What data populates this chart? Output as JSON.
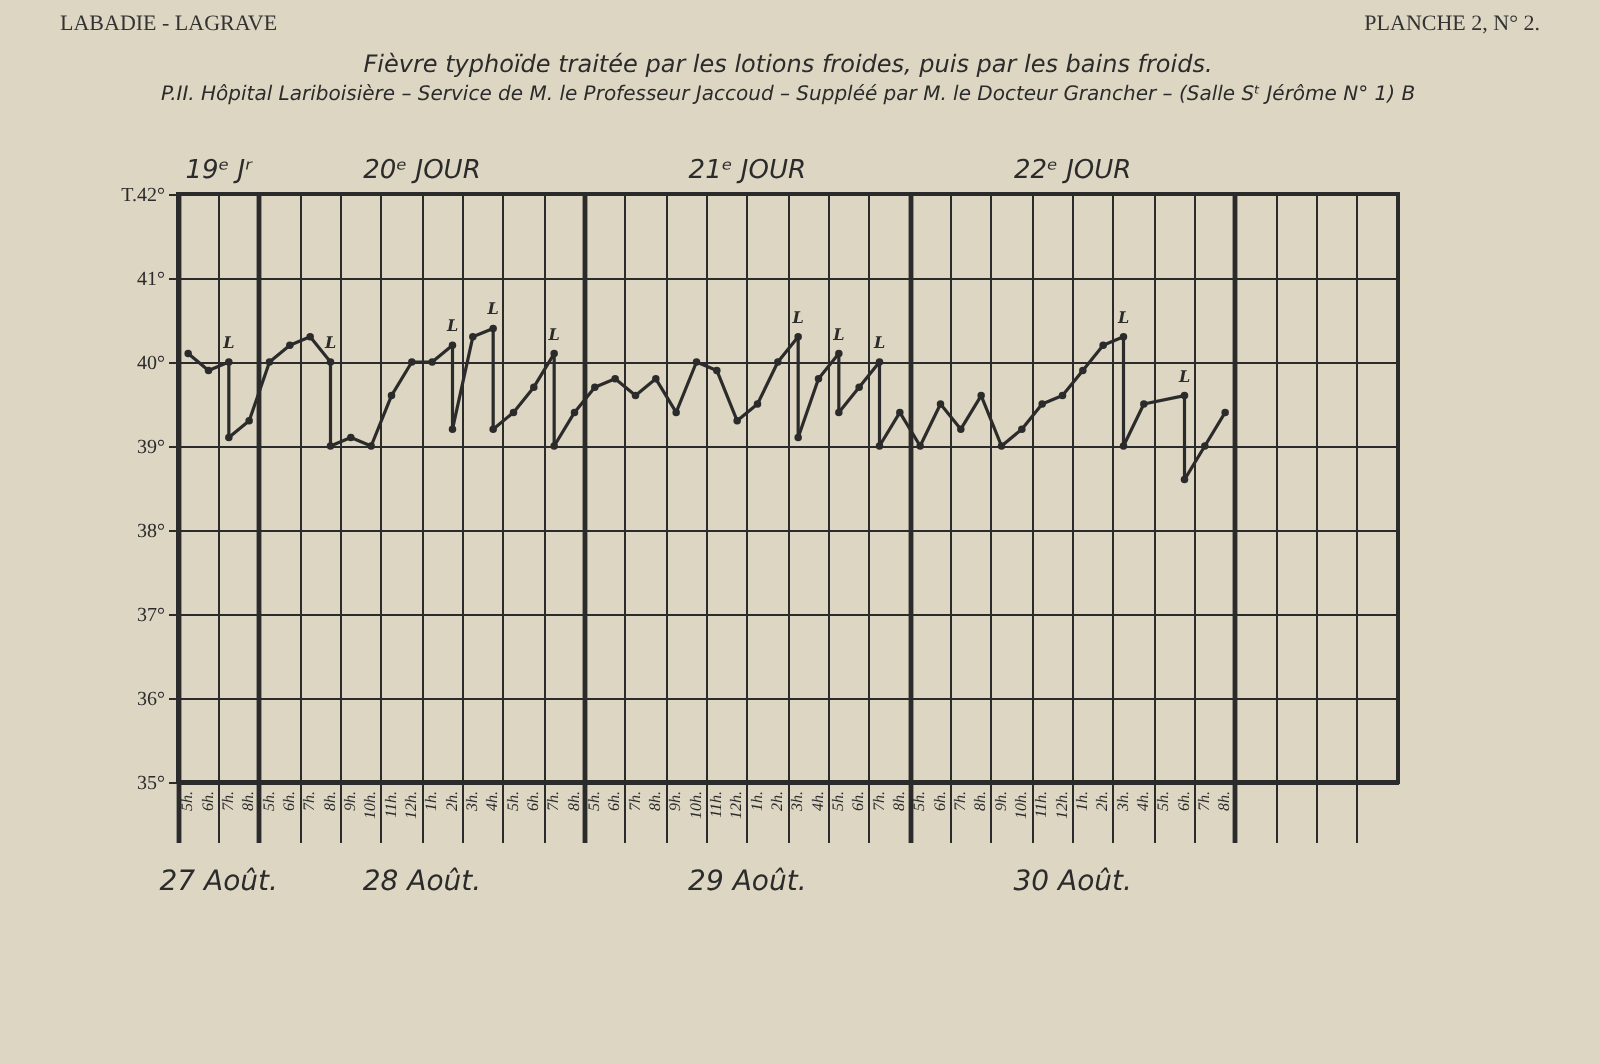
{
  "chart_data": {
    "type": "line",
    "title": "Fièvre typhoïde traitée par les lotions froides, puis par les bains froids.",
    "subtitle": "P.II. Hôpital Lariboisière – Service de M. le Professeur Jaccoud – Suppléé par M. le Docteur Grancher – (Salle Sᵗ Jérôme N° 1) B",
    "annotations": [
      "LABADIE - LAGRAVE",
      "PLANCHE 2, N° 2.",
      "19ᵉ Jʳ",
      "20ᵉ JOUR",
      "21ᵉ JOUR",
      "22ᵉ JOUR",
      "27 Août.",
      "28 Août.",
      "29 Août.",
      "30 Août."
    ],
    "categories": [
      "5h.",
      "6h.",
      "7h.",
      "8h.",
      "5h.",
      "6h.",
      "7h.",
      "8h.",
      "9h.",
      "10h.",
      "11h.",
      "12h.",
      "1h.",
      "2h.",
      "3h.",
      "4h.",
      "5h.",
      "6h.",
      "7h.",
      "8h.",
      "5h.",
      "6h.",
      "7h.",
      "8h.",
      "9h.",
      "10h.",
      "11h.",
      "12h.",
      "1h.",
      "2h.",
      "3h.",
      "4h.",
      "5h.",
      "6h.",
      "7h.",
      "8h.",
      "5h.",
      "6h.",
      "7h.",
      "8h.",
      "9h.",
      "10h.",
      "11h.",
      "12h.",
      "1h.",
      "2h.",
      "3h.",
      "4h.",
      "5h.",
      "6h.",
      "7h.",
      "8h.",
      null,
      null,
      null,
      null,
      null,
      null,
      null,
      null
    ],
    "series": [
      {
        "color": "#2b2b2b",
        "values": [
          40.1,
          39.9,
          40.0,
          null,
          null,
          null,
          null,
          null,
          null,
          null,
          null,
          null,
          null,
          null,
          null,
          null,
          null,
          null,
          null,
          null,
          null,
          null,
          null,
          null,
          null,
          null,
          null,
          null,
          null,
          null,
          null,
          null,
          null,
          null,
          null,
          null,
          null,
          null,
          null,
          null,
          null,
          null,
          null,
          null,
          null,
          null,
          null,
          null,
          null,
          null,
          null,
          null,
          null,
          null,
          null,
          null,
          null,
          null,
          null,
          null
        ],
        "errors": [
          null,
          null,
          [
            39.1,
            40.0
          ],
          null,
          null,
          null,
          null,
          null,
          null,
          null,
          null,
          null,
          null,
          null,
          null,
          null,
          null,
          null,
          null,
          null,
          null,
          null,
          null,
          null,
          null,
          null,
          null,
          null,
          null,
          null,
          null,
          null,
          null,
          null,
          null,
          null,
          null,
          null,
          null,
          null,
          null,
          null,
          null,
          null,
          null,
          null,
          null,
          null,
          null,
          null,
          null,
          null,
          null,
          null,
          null,
          null,
          null,
          null,
          null,
          null
        ],
        "value_labels": [
          null,
          null,
          "L",
          null,
          null,
          null,
          null,
          null,
          null,
          null,
          null,
          null,
          null,
          null,
          null,
          null,
          null,
          null,
          null,
          null,
          null,
          null,
          null,
          null,
          null,
          null,
          null,
          null,
          null,
          null,
          null,
          null,
          null,
          null,
          null,
          null,
          null,
          null,
          null,
          null,
          null,
          null,
          null,
          null,
          null,
          null,
          null,
          null,
          null,
          null,
          null,
          null,
          null,
          null,
          null,
          null,
          null,
          null,
          null,
          null
        ]
      },
      {
        "color": "#2b2b2b",
        "values": [
          null,
          null,
          39.1,
          39.3,
          40.0,
          40.2,
          40.3,
          40.0,
          null,
          null,
          null,
          null,
          null,
          null,
          null,
          null,
          null,
          null,
          null,
          null,
          null,
          null,
          null,
          null,
          null,
          null,
          null,
          null,
          null,
          null,
          null,
          null,
          null,
          null,
          null,
          null,
          null,
          null,
          null,
          null,
          null,
          null,
          null,
          null,
          null,
          null,
          null,
          null,
          null,
          null,
          null,
          null,
          null,
          null,
          null,
          null,
          null,
          null,
          null,
          null
        ],
        "errors": [
          null,
          null,
          null,
          null,
          null,
          null,
          null,
          [
            39.0,
            40.0
          ],
          null,
          null,
          null,
          null,
          null,
          null,
          null,
          null,
          null,
          null,
          null,
          null,
          null,
          null,
          null,
          null,
          null,
          null,
          null,
          null,
          null,
          null,
          null,
          null,
          null,
          null,
          null,
          null,
          null,
          null,
          null,
          null,
          null,
          null,
          null,
          null,
          null,
          null,
          null,
          null,
          null,
          null,
          null,
          null,
          null,
          null,
          null,
          null,
          null,
          null,
          null,
          null
        ],
        "value_labels": [
          null,
          null,
          null,
          null,
          null,
          null,
          null,
          "L",
          null,
          null,
          null,
          null,
          null,
          null,
          null,
          null,
          null,
          null,
          null,
          null,
          null,
          null,
          null,
          null,
          null,
          null,
          null,
          null,
          null,
          null,
          null,
          null,
          null,
          null,
          null,
          null,
          null,
          null,
          null,
          null,
          null,
          null,
          null,
          null,
          null,
          null,
          null,
          null,
          null,
          null,
          null,
          null,
          null,
          null,
          null,
          null,
          null,
          null,
          null,
          null
        ]
      },
      {
        "color": "#2b2b2b",
        "values": [
          null,
          null,
          null,
          null,
          null,
          null,
          null,
          39.0,
          39.1,
          39.0,
          39.6,
          40.0,
          40.0,
          40.2,
          null,
          null,
          null,
          null,
          null,
          null,
          null,
          null,
          null,
          null,
          null,
          null,
          null,
          null,
          null,
          null,
          null,
          null,
          null,
          null,
          null,
          null,
          null,
          null,
          null,
          null,
          null,
          null,
          null,
          null,
          null,
          null,
          null,
          null,
          null,
          null,
          null,
          null,
          null,
          null,
          null,
          null,
          null,
          null,
          null,
          null
        ],
        "errors": [
          null,
          null,
          null,
          null,
          null,
          null,
          null,
          null,
          null,
          null,
          null,
          null,
          null,
          [
            39.2,
            40.2
          ],
          null,
          null,
          null,
          null,
          null,
          null,
          null,
          null,
          null,
          null,
          null,
          null,
          null,
          null,
          null,
          null,
          null,
          null,
          null,
          null,
          null,
          null,
          null,
          null,
          null,
          null,
          null,
          null,
          null,
          null,
          null,
          null,
          null,
          null,
          null,
          null,
          null,
          null,
          null,
          null,
          null,
          null,
          null,
          null,
          null,
          null
        ],
        "value_labels": [
          null,
          null,
          null,
          null,
          null,
          null,
          null,
          null,
          null,
          null,
          null,
          null,
          null,
          "L",
          null,
          null,
          null,
          null,
          null,
          null,
          null,
          null,
          null,
          null,
          null,
          null,
          null,
          null,
          null,
          null,
          null,
          null,
          null,
          null,
          null,
          null,
          null,
          null,
          null,
          null,
          null,
          null,
          null,
          null,
          null,
          null,
          null,
          null,
          null,
          null,
          null,
          null,
          null,
          null,
          null,
          null,
          null,
          null,
          null,
          null
        ]
      },
      {
        "color": "#2b2b2b",
        "values": [
          null,
          null,
          null,
          null,
          null,
          null,
          null,
          null,
          null,
          null,
          null,
          null,
          null,
          39.2,
          40.3,
          40.4,
          null,
          null,
          null,
          null,
          null,
          null,
          null,
          null,
          null,
          null,
          null,
          null,
          null,
          null,
          null,
          null,
          null,
          null,
          null,
          null,
          null,
          null,
          null,
          null,
          null,
          null,
          null,
          null,
          null,
          null,
          null,
          null,
          null,
          null,
          null,
          null,
          null,
          null,
          null,
          null,
          null,
          null,
          null,
          null
        ],
        "errors": [
          null,
          null,
          null,
          null,
          null,
          null,
          null,
          null,
          null,
          null,
          null,
          null,
          null,
          null,
          null,
          [
            39.2,
            40.4
          ],
          null,
          null,
          null,
          null,
          null,
          null,
          null,
          null,
          null,
          null,
          null,
          null,
          null,
          null,
          null,
          null,
          null,
          null,
          null,
          null,
          null,
          null,
          null,
          null,
          null,
          null,
          null,
          null,
          null,
          null,
          null,
          null,
          null,
          null,
          null,
          null,
          null,
          null,
          null,
          null,
          null,
          null,
          null,
          null
        ],
        "value_labels": [
          null,
          null,
          null,
          null,
          null,
          null,
          null,
          null,
          null,
          null,
          null,
          null,
          null,
          null,
          null,
          "L",
          null,
          null,
          null,
          null,
          null,
          null,
          null,
          null,
          null,
          null,
          null,
          null,
          null,
          null,
          null,
          null,
          null,
          null,
          null,
          null,
          null,
          null,
          null,
          null,
          null,
          null,
          null,
          null,
          null,
          null,
          null,
          null,
          null,
          null,
          null,
          null,
          null,
          null,
          null,
          null,
          null,
          null,
          null,
          null
        ]
      },
      {
        "color": "#2b2b2b",
        "values": [
          null,
          null,
          null,
          null,
          null,
          null,
          null,
          null,
          null,
          null,
          null,
          null,
          null,
          null,
          null,
          39.2,
          39.4,
          39.7,
          40.1,
          null,
          null,
          null,
          null,
          null,
          null,
          null,
          null,
          null,
          null,
          null,
          null,
          null,
          null,
          null,
          null,
          null,
          null,
          null,
          null,
          null,
          null,
          null,
          null,
          null,
          null,
          null,
          null,
          null,
          null,
          null,
          null,
          null,
          null,
          null,
          null,
          null,
          null,
          null,
          null,
          null
        ],
        "errors": [
          null,
          null,
          null,
          null,
          null,
          null,
          null,
          null,
          null,
          null,
          null,
          null,
          null,
          null,
          null,
          null,
          null,
          null,
          [
            39.0,
            40.1
          ],
          null,
          null,
          null,
          null,
          null,
          null,
          null,
          null,
          null,
          null,
          null,
          null,
          null,
          null,
          null,
          null,
          null,
          null,
          null,
          null,
          null,
          null,
          null,
          null,
          null,
          null,
          null,
          null,
          null,
          null,
          null,
          null,
          null,
          null,
          null,
          null,
          null,
          null,
          null,
          null,
          null
        ],
        "value_labels": [
          null,
          null,
          null,
          null,
          null,
          null,
          null,
          null,
          null,
          null,
          null,
          null,
          null,
          null,
          null,
          null,
          null,
          null,
          "L",
          null,
          null,
          null,
          null,
          null,
          null,
          null,
          null,
          null,
          null,
          null,
          null,
          null,
          null,
          null,
          null,
          null,
          null,
          null,
          null,
          null,
          null,
          null,
          null,
          null,
          null,
          null,
          null,
          null,
          null,
          null,
          null,
          null,
          null,
          null,
          null,
          null,
          null,
          null,
          null,
          null
        ]
      },
      {
        "color": "#2b2b2b",
        "values": [
          null,
          null,
          null,
          null,
          null,
          null,
          null,
          null,
          null,
          null,
          null,
          null,
          null,
          null,
          null,
          null,
          null,
          null,
          39.0,
          39.4,
          39.7,
          39.8,
          39.6,
          39.8,
          39.4,
          40.0,
          39.9,
          39.3,
          39.5,
          40.0,
          40.3,
          null,
          null,
          null,
          null,
          null,
          null,
          null,
          null,
          null,
          null,
          null,
          null,
          null,
          null,
          null,
          null,
          null,
          null,
          null,
          null,
          null,
          null,
          null,
          null,
          null,
          null,
          null,
          null,
          null
        ],
        "errors": [
          null,
          null,
          null,
          null,
          null,
          null,
          null,
          null,
          null,
          null,
          null,
          null,
          null,
          null,
          null,
          null,
          null,
          null,
          null,
          null,
          null,
          null,
          null,
          null,
          null,
          null,
          null,
          null,
          null,
          null,
          [
            39.1,
            40.3
          ],
          null,
          null,
          null,
          null,
          null,
          null,
          null,
          null,
          null,
          null,
          null,
          null,
          null,
          null,
          null,
          null,
          null,
          null,
          null,
          null,
          null,
          null,
          null,
          null,
          null,
          null,
          null,
          null,
          null
        ],
        "value_labels": [
          null,
          null,
          null,
          null,
          null,
          null,
          null,
          null,
          null,
          null,
          null,
          null,
          null,
          null,
          null,
          null,
          null,
          null,
          null,
          null,
          null,
          null,
          null,
          null,
          null,
          null,
          null,
          null,
          null,
          null,
          "L",
          null,
          null,
          null,
          null,
          null,
          null,
          null,
          null,
          null,
          null,
          null,
          null,
          null,
          null,
          null,
          null,
          null,
          null,
          null,
          null,
          null,
          null,
          null,
          null,
          null,
          null,
          null,
          null,
          null
        ]
      },
      {
        "color": "#2b2b2b",
        "values": [
          null,
          null,
          null,
          null,
          null,
          null,
          null,
          null,
          null,
          null,
          null,
          null,
          null,
          null,
          null,
          null,
          null,
          null,
          null,
          null,
          null,
          null,
          null,
          null,
          null,
          null,
          null,
          null,
          null,
          null,
          39.1,
          39.8,
          40.1,
          null,
          null,
          null,
          null,
          null,
          null,
          null,
          null,
          null,
          null,
          null,
          null,
          null,
          null,
          null,
          null,
          null,
          null,
          null,
          null,
          null,
          null,
          null,
          null,
          null,
          null,
          null
        ],
        "errors": [
          null,
          null,
          null,
          null,
          null,
          null,
          null,
          null,
          null,
          null,
          null,
          null,
          null,
          null,
          null,
          null,
          null,
          null,
          null,
          null,
          null,
          null,
          null,
          null,
          null,
          null,
          null,
          null,
          null,
          null,
          null,
          null,
          [
            39.4,
            40.1
          ],
          null,
          null,
          null,
          null,
          null,
          null,
          null,
          null,
          null,
          null,
          null,
          null,
          null,
          null,
          null,
          null,
          null,
          null,
          null,
          null,
          null,
          null,
          null,
          null,
          null,
          null,
          null
        ],
        "value_labels": [
          null,
          null,
          null,
          null,
          null,
          null,
          null,
          null,
          null,
          null,
          null,
          null,
          null,
          null,
          null,
          null,
          null,
          null,
          null,
          null,
          null,
          null,
          null,
          null,
          null,
          null,
          null,
          null,
          null,
          null,
          null,
          null,
          "L",
          null,
          null,
          null,
          null,
          null,
          null,
          null,
          null,
          null,
          null,
          null,
          null,
          null,
          null,
          null,
          null,
          null,
          null,
          null,
          null,
          null,
          null,
          null,
          null,
          null,
          null,
          null
        ]
      },
      {
        "color": "#2b2b2b",
        "values": [
          null,
          null,
          null,
          null,
          null,
          null,
          null,
          null,
          null,
          null,
          null,
          null,
          null,
          null,
          null,
          null,
          null,
          null,
          null,
          null,
          null,
          null,
          null,
          null,
          null,
          null,
          null,
          null,
          null,
          null,
          null,
          null,
          39.4,
          39.7,
          40.0,
          null,
          null,
          null,
          null,
          null,
          null,
          null,
          null,
          null,
          null,
          null,
          null,
          null,
          null,
          null,
          null,
          null,
          null,
          null,
          null,
          null,
          null,
          null,
          null,
          null
        ],
        "errors": [
          null,
          null,
          null,
          null,
          null,
          null,
          null,
          null,
          null,
          null,
          null,
          null,
          null,
          null,
          null,
          null,
          null,
          null,
          null,
          null,
          null,
          null,
          null,
          null,
          null,
          null,
          null,
          null,
          null,
          null,
          null,
          null,
          null,
          null,
          [
            39.0,
            40.0
          ],
          null,
          null,
          null,
          null,
          null,
          null,
          null,
          null,
          null,
          null,
          null,
          null,
          null,
          null,
          null,
          null,
          null,
          null,
          null,
          null,
          null,
          null,
          null,
          null,
          null
        ],
        "value_labels": [
          null,
          null,
          null,
          null,
          null,
          null,
          null,
          null,
          null,
          null,
          null,
          null,
          null,
          null,
          null,
          null,
          null,
          null,
          null,
          null,
          null,
          null,
          null,
          null,
          null,
          null,
          null,
          null,
          null,
          null,
          null,
          null,
          null,
          null,
          "L",
          null,
          null,
          null,
          null,
          null,
          null,
          null,
          null,
          null,
          null,
          null,
          null,
          null,
          null,
          null,
          null,
          null,
          null,
          null,
          null,
          null,
          null,
          null,
          null,
          null
        ]
      },
      {
        "color": "#2b2b2b",
        "values": [
          null,
          null,
          null,
          null,
          null,
          null,
          null,
          null,
          null,
          null,
          null,
          null,
          null,
          null,
          null,
          null,
          null,
          null,
          null,
          null,
          null,
          null,
          null,
          null,
          null,
          null,
          null,
          null,
          null,
          null,
          null,
          null,
          null,
          null,
          39.0,
          39.4,
          39.0,
          39.5,
          39.2,
          39.6,
          39.0,
          39.2,
          39.5,
          39.6,
          39.9,
          40.2,
          40.3,
          null,
          null,
          null,
          null,
          null,
          null,
          null,
          null,
          null,
          null,
          null,
          null,
          null
        ],
        "errors": [
          null,
          null,
          null,
          null,
          null,
          null,
          null,
          null,
          null,
          null,
          null,
          null,
          null,
          null,
          null,
          null,
          null,
          null,
          null,
          null,
          null,
          null,
          null,
          null,
          null,
          null,
          null,
          null,
          null,
          null,
          null,
          null,
          null,
          null,
          null,
          null,
          null,
          null,
          null,
          null,
          null,
          null,
          null,
          null,
          null,
          null,
          [
            39.0,
            40.3
          ],
          null,
          null,
          null,
          null,
          null,
          null,
          null,
          null,
          null,
          null,
          null,
          null,
          null
        ],
        "value_labels": [
          null,
          null,
          null,
          null,
          null,
          null,
          null,
          null,
          null,
          null,
          null,
          null,
          null,
          null,
          null,
          null,
          null,
          null,
          null,
          null,
          null,
          null,
          null,
          null,
          null,
          null,
          null,
          null,
          null,
          null,
          null,
          null,
          null,
          null,
          null,
          null,
          null,
          null,
          null,
          null,
          null,
          null,
          null,
          null,
          null,
          null,
          "L",
          null,
          null,
          null,
          null,
          null,
          null,
          null,
          null,
          null,
          null,
          null,
          null,
          null
        ]
      },
      {
        "color": "#2b2b2b",
        "values": [
          null,
          null,
          null,
          null,
          null,
          null,
          null,
          null,
          null,
          null,
          null,
          null,
          null,
          null,
          null,
          null,
          null,
          null,
          null,
          null,
          null,
          null,
          null,
          null,
          null,
          null,
          null,
          null,
          null,
          null,
          null,
          null,
          null,
          null,
          null,
          null,
          null,
          null,
          null,
          null,
          null,
          null,
          null,
          null,
          null,
          null,
          39.0,
          39.5,
          null,
          39.6,
          null,
          null,
          null,
          null,
          null,
          null,
          null,
          null,
          null,
          null
        ],
        "errors": [
          null,
          null,
          null,
          null,
          null,
          null,
          null,
          null,
          null,
          null,
          null,
          null,
          null,
          null,
          null,
          null,
          null,
          null,
          null,
          null,
          null,
          null,
          null,
          null,
          null,
          null,
          null,
          null,
          null,
          null,
          null,
          null,
          null,
          null,
          null,
          null,
          null,
          null,
          null,
          null,
          null,
          null,
          null,
          null,
          null,
          null,
          null,
          null,
          null,
          [
            38.6,
            39.6
          ],
          null,
          null,
          null,
          null,
          null,
          null,
          null,
          null,
          null,
          null
        ],
        "value_labels": [
          null,
          null,
          null,
          null,
          null,
          null,
          null,
          null,
          null,
          null,
          null,
          null,
          null,
          null,
          null,
          null,
          null,
          null,
          null,
          null,
          null,
          null,
          null,
          null,
          null,
          null,
          null,
          null,
          null,
          null,
          null,
          null,
          null,
          null,
          null,
          null,
          null,
          null,
          null,
          null,
          null,
          null,
          null,
          null,
          null,
          null,
          null,
          null,
          null,
          "L",
          null,
          null,
          null,
          null,
          null,
          null,
          null,
          null,
          null,
          null
        ]
      },
      {
        "color": "#2b2b2b",
        "values": [
          null,
          null,
          null,
          null,
          null,
          null,
          null,
          null,
          null,
          null,
          null,
          null,
          null,
          null,
          null,
          null,
          null,
          null,
          null,
          null,
          null,
          null,
          null,
          null,
          null,
          null,
          null,
          null,
          null,
          null,
          null,
          null,
          null,
          null,
          null,
          null,
          null,
          null,
          null,
          null,
          null,
          null,
          null,
          null,
          null,
          null,
          null,
          null,
          null,
          38.6,
          39.0,
          39.4,
          null,
          null,
          null,
          null,
          null,
          null,
          null,
          null
        ]
      }
    ],
    "marker": "circle",
    "line_style": "solid",
    "grid": true,
    "ylim": [
      35,
      42
    ],
    "yticks": [
      {
        "value": 35,
        "label": "35°"
      },
      {
        "value": 36,
        "label": "36°"
      },
      {
        "value": 37,
        "label": "37°"
      },
      {
        "value": 38,
        "label": "38°"
      },
      {
        "value": 39,
        "label": "39°"
      },
      {
        "value": 40,
        "label": "40°"
      },
      {
        "value": 41,
        "label": "41°"
      },
      {
        "value": 42,
        "label": "T.42°"
      }
    ]
  }
}
